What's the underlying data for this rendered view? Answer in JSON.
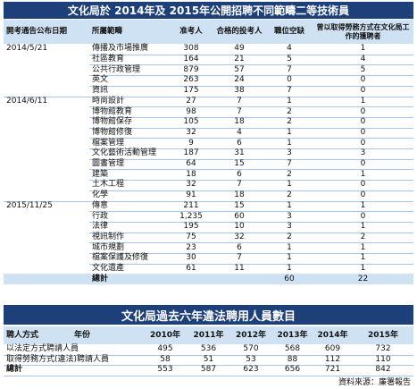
{
  "table1": {
    "title": "文化局於 2014年及 2015年公開招聘不同範疇二等技術員",
    "headers": [
      "開考通告公布日期",
      "所屬範疇",
      "准考人",
      "合格的投考人",
      "職位空缺",
      "曾以取得勞務方式在文化局工作的獲聘者"
    ],
    "groups": [
      {
        "date": "2014/5/21",
        "rows": [
          [
            "傳播及市場推廣",
            "308",
            "49",
            "4",
            "1"
          ],
          [
            "社區教育",
            "164",
            "21",
            "5",
            "4"
          ],
          [
            "公共行政管理",
            "879",
            "57",
            "7",
            "5"
          ],
          [
            "英文",
            "263",
            "24",
            "0",
            "0"
          ],
          [
            "資訊",
            "175",
            "38",
            "7",
            "0"
          ]
        ]
      },
      {
        "date": "2014/6/11",
        "rows": [
          [
            "時尚設計",
            "27",
            "7",
            "1",
            "1"
          ],
          [
            "博物館教育",
            "98",
            "7",
            "2",
            "0"
          ],
          [
            "博物館保存",
            "105",
            "18",
            "2",
            "0"
          ],
          [
            "博物館修復",
            "32",
            "4",
            "1",
            "0"
          ],
          [
            "檔案管理",
            "9",
            "6",
            "1",
            "0"
          ],
          [
            "文化藝術活動管理",
            "187",
            "31",
            "3",
            "3"
          ],
          [
            "圖書管理",
            "64",
            "15",
            "7",
            "0"
          ],
          [
            "建築",
            "18",
            "6",
            "2",
            "1"
          ],
          [
            "土木工程",
            "32",
            "7",
            "1",
            "0"
          ],
          [
            "化學",
            "91",
            "18",
            "2",
            "0"
          ]
        ]
      },
      {
        "date": "2015/11/25",
        "rows": [
          [
            "傳意",
            "211",
            "15",
            "1",
            "1"
          ],
          [
            "行政",
            "1,235",
            "60",
            "3",
            "0"
          ],
          [
            "法律",
            "195",
            "10",
            "3",
            "1"
          ],
          [
            "視訊制作",
            "75",
            "32",
            "2",
            "2"
          ],
          [
            "城市規劃",
            "23",
            "6",
            "1",
            "1"
          ],
          [
            "檔案保護及修復",
            "30",
            "7",
            "1",
            "1"
          ],
          [
            "文化遺產",
            "61",
            "11",
            "1",
            "1"
          ]
        ]
      }
    ],
    "total": {
      "label": "總計",
      "vacancies": "60",
      "hired": "22"
    }
  },
  "table2": {
    "title": "文化局過去六年違法聘用人員數目",
    "corner": [
      "聘人方式",
      "年份"
    ],
    "years": [
      "2010年",
      "2011年",
      "2012年",
      "2013年",
      "2014年",
      "2015年"
    ],
    "rows": [
      [
        "以法定方式聘請人員",
        "495",
        "536",
        "570",
        "568",
        "609",
        "732"
      ],
      [
        "取得勞務方式(違法)聘請人員",
        "58",
        "51",
        "53",
        "88",
        "112",
        "110"
      ],
      [
        "總計",
        "553",
        "587",
        "623",
        "656",
        "721",
        "842"
      ]
    ]
  },
  "source": "資料來源：廉署報告"
}
